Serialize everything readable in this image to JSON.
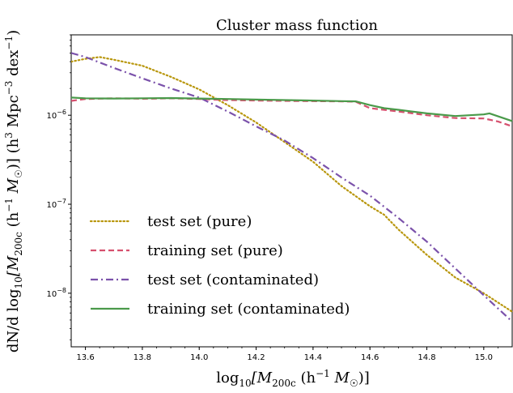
{
  "chart_data": {
    "type": "line",
    "title": "Cluster mass function",
    "xlabel_parts": [
      "log",
      "10",
      "[M",
      "200c",
      " (h",
      "−1",
      " M",
      "☉",
      ")]"
    ],
    "ylabel_parts": [
      "dN/d log",
      "10",
      "[M",
      "200c",
      " (h",
      "−1",
      " M",
      "☉",
      ")] (h",
      "3",
      " Mpc",
      "−3",
      " dex",
      "−1",
      ")"
    ],
    "xlim": [
      13.55,
      15.1
    ],
    "ylim": [
      2.5e-09,
      8e-06
    ],
    "yscale": "log",
    "xticks": [
      13.6,
      13.8,
      14.0,
      14.2,
      14.4,
      14.6,
      14.8,
      15.0
    ],
    "xtick_labels": [
      "13.6",
      "13.8",
      "14.0",
      "14.2",
      "14.4",
      "14.6",
      "14.8",
      "15.0"
    ],
    "yticks": [
      1e-08,
      1e-07,
      1e-06
    ],
    "ytick_labels": [
      {
        "base": "10",
        "exp": "−8"
      },
      {
        "base": "10",
        "exp": "−7"
      },
      {
        "base": "10",
        "exp": "−6"
      }
    ],
    "legend_position": "lower-left",
    "series": [
      {
        "name": "test set (pure)",
        "color": "#b8960c",
        "style": "dotted",
        "x": [
          13.55,
          13.6,
          13.65,
          13.7,
          13.8,
          13.9,
          14.0,
          14.1,
          14.2,
          14.3,
          14.4,
          14.5,
          14.6,
          14.65,
          14.7,
          14.8,
          14.9,
          15.0,
          15.1
        ],
        "y": [
          4e-06,
          4.3e-06,
          4.5e-06,
          4.2e-06,
          3.6e-06,
          2.7e-06,
          1.95e-06,
          1.3e-06,
          8.3e-07,
          5e-07,
          3e-07,
          1.6e-07,
          9.5e-08,
          7.6e-08,
          5.2e-08,
          2.7e-08,
          1.5e-08,
          1e-08,
          6.2e-09
        ]
      },
      {
        "name": "training set (pure)",
        "color": "#d6506e",
        "style": "dashed",
        "x": [
          13.55,
          13.6,
          13.7,
          13.8,
          13.9,
          14.0,
          14.1,
          14.2,
          14.3,
          14.4,
          14.5,
          14.55,
          14.6,
          14.7,
          14.8,
          14.9,
          15.0,
          15.05,
          15.1
        ],
        "y": [
          1.45e-06,
          1.52e-06,
          1.55e-06,
          1.53e-06,
          1.55e-06,
          1.52e-06,
          1.48e-06,
          1.46e-06,
          1.45e-06,
          1.44e-06,
          1.43e-06,
          1.42e-06,
          1.2e-06,
          1.1e-06,
          1e-06,
          9.3e-07,
          9.2e-07,
          8.5e-07,
          7.5e-07
        ]
      },
      {
        "name": "test set (contaminated)",
        "color": "#7b52ab",
        "style": "dashdot",
        "x": [
          13.55,
          13.6,
          13.7,
          13.8,
          13.9,
          14.0,
          14.1,
          14.2,
          14.3,
          14.4,
          14.5,
          14.6,
          14.7,
          14.8,
          14.9,
          15.0,
          15.1
        ],
        "y": [
          5e-06,
          4.5e-06,
          3.4e-06,
          2.6e-06,
          2e-06,
          1.58e-06,
          1.1e-06,
          7.5e-07,
          5.2e-07,
          3.3e-07,
          2e-07,
          1.25e-07,
          7e-08,
          3.8e-08,
          1.9e-08,
          9.5e-09,
          4.8e-09
        ]
      },
      {
        "name": "training set (contaminated)",
        "color": "#4a9a4a",
        "style": "solid",
        "x": [
          13.55,
          13.6,
          13.7,
          13.8,
          13.9,
          14.0,
          14.1,
          14.2,
          14.3,
          14.4,
          14.5,
          14.55,
          14.6,
          14.65,
          14.7,
          14.8,
          14.9,
          15.0,
          15.02,
          15.1
        ],
        "y": [
          1.58e-06,
          1.55e-06,
          1.54e-06,
          1.55e-06,
          1.56e-06,
          1.54e-06,
          1.52e-06,
          1.5e-06,
          1.48e-06,
          1.46e-06,
          1.44e-06,
          1.43e-06,
          1.3e-06,
          1.2e-06,
          1.15e-06,
          1.05e-06,
          9.8e-07,
          1.02e-06,
          1.05e-06,
          8.6e-07
        ]
      }
    ]
  }
}
